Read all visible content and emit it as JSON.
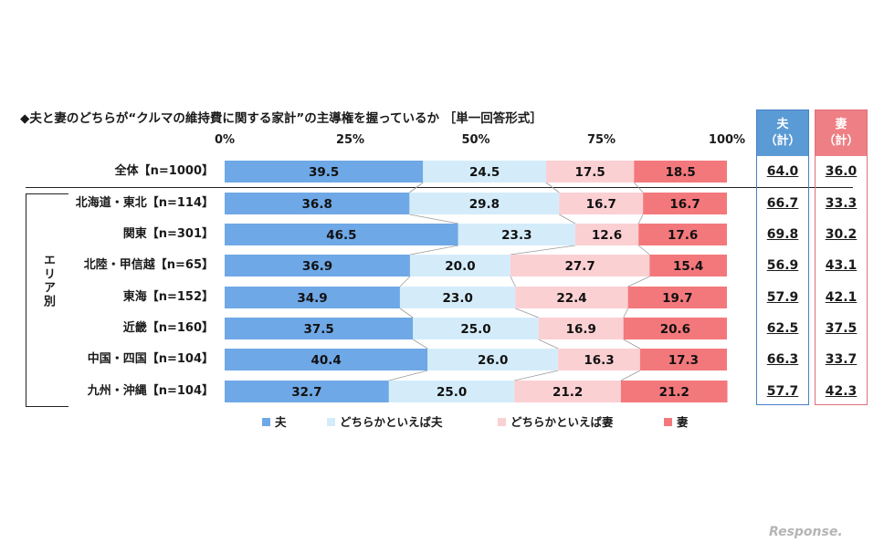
{
  "title": "◆夫と妻のどちらが“クルマの維持費に関する家計”の主導権を握っているか ［単一回答形式］",
  "area_label": "エリア別",
  "summary": {
    "husband": {
      "title": "夫",
      "sub": "（計）",
      "color": "#4a7fc8",
      "fill": "#5b9bd5",
      "values": [
        "64.0",
        "66.7",
        "69.8",
        "56.9",
        "57.9",
        "62.5",
        "66.3",
        "57.7"
      ]
    },
    "wife": {
      "title": "妻",
      "sub": "（計）",
      "color": "#e0707a",
      "fill": "#ee7f84",
      "values": [
        "36.0",
        "33.3",
        "30.2",
        "43.1",
        "42.1",
        "37.5",
        "33.7",
        "42.3"
      ]
    }
  },
  "watermark": "Response.",
  "chart_data": {
    "type": "bar",
    "orientation": "horizontal-stacked-100",
    "xlim": [
      0,
      100
    ],
    "x_ticks": [
      "0%",
      "25%",
      "50%",
      "75%",
      "100%"
    ],
    "categories": [
      "全体【n=1000】",
      "北海道・東北【n=114】",
      "関東【n=301】",
      "北陸・甲信越【n=65】",
      "東海【n=152】",
      "近畿【n=160】",
      "中国・四国【n=104】",
      "九州・沖縄【n=104】"
    ],
    "series": [
      {
        "name": "夫",
        "color": "#6fa8e6",
        "values": [
          39.5,
          36.8,
          46.5,
          36.9,
          34.9,
          37.5,
          40.4,
          32.7
        ]
      },
      {
        "name": "どちらかといえば夫",
        "color": "#d4ecfa",
        "values": [
          24.5,
          29.8,
          23.3,
          20.0,
          23.0,
          25.0,
          26.0,
          25.0
        ]
      },
      {
        "name": "どちらかといえば妻",
        "color": "#fbd0d3",
        "values": [
          17.5,
          16.7,
          12.6,
          27.7,
          22.4,
          16.9,
          16.3,
          21.2
        ]
      },
      {
        "name": "妻",
        "color": "#f3787c",
        "values": [
          18.5,
          16.7,
          17.6,
          15.4,
          19.7,
          20.6,
          17.3,
          21.2
        ]
      }
    ],
    "legend_position": "bottom",
    "grid": false
  }
}
